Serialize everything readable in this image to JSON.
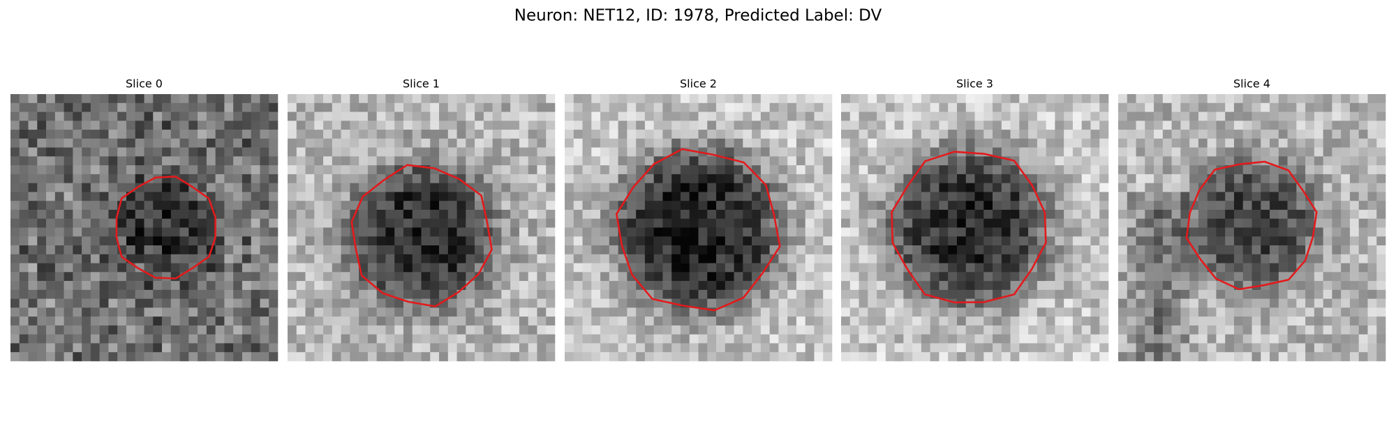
{
  "figure": {
    "title": "Neuron: NET12, ID: 1978, Predicted Label: DV",
    "panels": [
      {
        "title": "Slice 0"
      },
      {
        "title": "Slice 1"
      },
      {
        "title": "Slice 2"
      },
      {
        "title": "Slice 3"
      },
      {
        "title": "Slice 4"
      }
    ]
  }
}
